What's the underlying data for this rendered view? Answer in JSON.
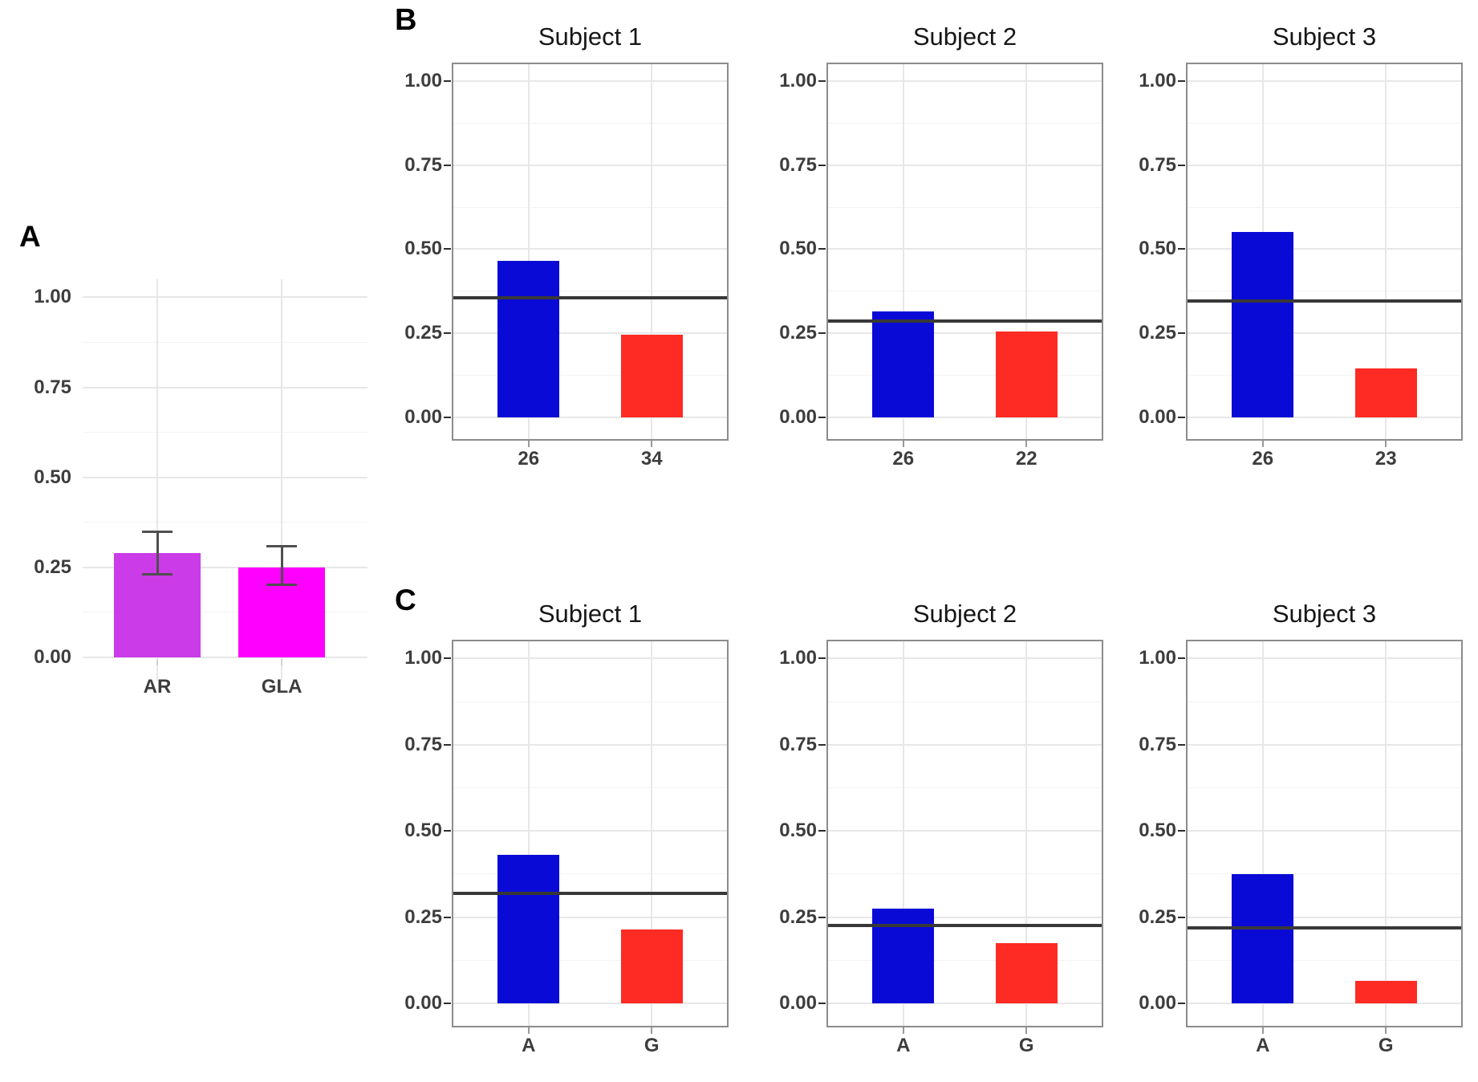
{
  "figure": {
    "background": "#ffffff"
  },
  "panel_letters": {
    "A": "A",
    "B": "B",
    "C": "C"
  },
  "colors": {
    "blue_bar": "#0a0ad6",
    "red_bar": "#fd2b24",
    "purple_bar": "#cb3be8",
    "magenta_bar": "#fe00fe",
    "reference_line": "#383838",
    "error_bar": "#4f4f4f"
  },
  "y_axis": {
    "tick_values": [
      1.0,
      0.75,
      0.5,
      0.25,
      0.0
    ],
    "tick_labels": [
      "1.00",
      "0.75",
      "0.50",
      "0.25",
      "0.00"
    ]
  },
  "chart_data": [
    {
      "id": "panel-a",
      "panel": "A",
      "type": "bar",
      "categories": [
        "AR",
        "GLA"
      ],
      "values": [
        0.29,
        0.25
      ],
      "error_low": [
        0.23,
        0.2
      ],
      "error_high": [
        0.35,
        0.31
      ],
      "bar_colors": [
        "#cb3be8",
        "#fe00fe"
      ],
      "ylim": [
        0,
        1
      ],
      "grid": "major+minor",
      "legend": "none"
    },
    {
      "id": "b1",
      "panel": "B",
      "type": "bar",
      "title": "Subject 1",
      "categories": [
        "26",
        "34"
      ],
      "values": [
        0.465,
        0.245
      ],
      "refline": 0.355,
      "bar_colors": [
        "#0a0ad6",
        "#fd2b24"
      ],
      "ylim": [
        0,
        1
      ],
      "grid": "major+minor",
      "legend": "none"
    },
    {
      "id": "b2",
      "panel": "B",
      "type": "bar",
      "title": "Subject 2",
      "categories": [
        "26",
        "22"
      ],
      "values": [
        0.315,
        0.255
      ],
      "refline": 0.285,
      "bar_colors": [
        "#0a0ad6",
        "#fd2b24"
      ],
      "ylim": [
        0,
        1
      ],
      "grid": "major+minor",
      "legend": "none"
    },
    {
      "id": "b3",
      "panel": "B",
      "type": "bar",
      "title": "Subject 3",
      "categories": [
        "26",
        "23"
      ],
      "values": [
        0.55,
        0.145
      ],
      "refline": 0.345,
      "bar_colors": [
        "#0a0ad6",
        "#fd2b24"
      ],
      "ylim": [
        0,
        1
      ],
      "grid": "major+minor",
      "legend": "none"
    },
    {
      "id": "c1",
      "panel": "C",
      "type": "bar",
      "title": "Subject 1",
      "categories": [
        "A",
        "G"
      ],
      "values": [
        0.43,
        0.215
      ],
      "refline": 0.32,
      "bar_colors": [
        "#0a0ad6",
        "#fd2b24"
      ],
      "ylim": [
        0,
        1
      ],
      "grid": "major+minor",
      "legend": "none"
    },
    {
      "id": "c2",
      "panel": "C",
      "type": "bar",
      "title": "Subject 2",
      "categories": [
        "A",
        "G"
      ],
      "values": [
        0.275,
        0.175
      ],
      "refline": 0.225,
      "bar_colors": [
        "#0a0ad6",
        "#fd2b24"
      ],
      "ylim": [
        0,
        1
      ],
      "grid": "major+minor",
      "legend": "none"
    },
    {
      "id": "c3",
      "panel": "C",
      "type": "bar",
      "title": "Subject 3",
      "categories": [
        "A",
        "G"
      ],
      "values": [
        0.375,
        0.065
      ],
      "refline": 0.22,
      "bar_colors": [
        "#0a0ad6",
        "#fd2b24"
      ],
      "ylim": [
        0,
        1
      ],
      "grid": "major+minor",
      "legend": "none"
    }
  ]
}
